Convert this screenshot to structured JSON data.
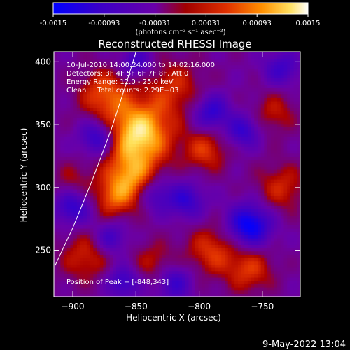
{
  "chart_data": {
    "type": "heatmap",
    "title": "Reconstructed RHESSI Image",
    "xlabel": "Heliocentric X (arcsec)",
    "ylabel": "Heliocentric Y (arcsec)",
    "xlim": [
      -915,
      -720
    ],
    "ylim": [
      213,
      408
    ],
    "x_ticks": [
      -900,
      -850,
      -800,
      -750
    ],
    "y_ticks": [
      250,
      300,
      350,
      400
    ],
    "grid": false,
    "colorbar": {
      "ticks": [
        "-0.0015",
        "-0.00093",
        "-0.00031",
        "0.00031",
        "0.00093",
        "0.0015"
      ],
      "range": [
        -0.0015,
        0.0015
      ],
      "unit_label": "(photons cm⁻² s⁻¹ asec⁻²)",
      "colors": [
        "#0000ff",
        "#3a00c8",
        "#6a00a8",
        "#a00000",
        "#e03000",
        "#ff9000",
        "#ffe060",
        "#ffffff"
      ]
    },
    "annotations": [
      "10-Jul-2010 14:00:24.000 to 14:02:16.000",
      "Detectors: 3F 4F 5F 6F 7F 8F, Att 0",
      "Energy Range: 12.0 - 25.0 keV",
      "Clean     Total counts: 2.29E+03"
    ],
    "peak_label": "Position of Peak = [-848,343]",
    "peak": [
      -848,
      343
    ],
    "limb_curve": [
      [
        -914,
        238
      ],
      [
        -900,
        268
      ],
      [
        -885,
        305
      ],
      [
        -870,
        345
      ],
      [
        -857,
        385
      ],
      [
        -850,
        408
      ]
    ],
    "hotspots": [
      {
        "x": -848,
        "y": 343,
        "sigma": 18,
        "amp": 0.0015
      },
      {
        "x": -855,
        "y": 305,
        "sigma": 15,
        "amp": 0.0011
      },
      {
        "x": -875,
        "y": 375,
        "sigma": 14,
        "amp": 0.0008
      },
      {
        "x": -820,
        "y": 380,
        "sigma": 16,
        "amp": 0.0006
      },
      {
        "x": -795,
        "y": 330,
        "sigma": 12,
        "amp": 0.0007
      },
      {
        "x": -790,
        "y": 250,
        "sigma": 14,
        "amp": 0.0007
      },
      {
        "x": -735,
        "y": 300,
        "sigma": 14,
        "amp": 0.0006
      },
      {
        "x": -760,
        "y": 235,
        "sigma": 13,
        "amp": 0.0007
      },
      {
        "x": -890,
        "y": 245,
        "sigma": 14,
        "amp": 0.0006
      },
      {
        "x": -835,
        "y": 240,
        "sigma": 12,
        "amp": 0.0005
      },
      {
        "x": -740,
        "y": 360,
        "sigma": 12,
        "amp": 0.0005
      },
      {
        "x": -900,
        "y": 305,
        "sigma": 11,
        "amp": 0.0004
      },
      {
        "x": -870,
        "y": 290,
        "sigma": 10,
        "amp": 0.0005
      }
    ],
    "coldspots": [
      {
        "x": -880,
        "y": 340,
        "sigma": 10,
        "amp": -0.001
      },
      {
        "x": -790,
        "y": 360,
        "sigma": 10,
        "amp": -0.0009
      },
      {
        "x": -760,
        "y": 270,
        "sigma": 12,
        "amp": -0.0013
      },
      {
        "x": -835,
        "y": 295,
        "sigma": 10,
        "amp": -0.0008
      },
      {
        "x": -810,
        "y": 290,
        "sigma": 10,
        "amp": -0.0008
      },
      {
        "x": -765,
        "y": 345,
        "sigma": 9,
        "amp": -0.0008
      },
      {
        "x": -850,
        "y": 400,
        "sigma": 9,
        "amp": -0.0007
      },
      {
        "x": -900,
        "y": 285,
        "sigma": 10,
        "amp": -0.0009
      },
      {
        "x": -820,
        "y": 225,
        "sigma": 10,
        "amp": -0.0008
      },
      {
        "x": -735,
        "y": 395,
        "sigma": 10,
        "amp": -0.0007
      },
      {
        "x": -870,
        "y": 260,
        "sigma": 9,
        "amp": -0.0007
      },
      {
        "x": -860,
        "y": 225,
        "sigma": 9,
        "amp": -0.0008
      }
    ]
  },
  "footer": {
    "timestamp": "9-May-2022 13:04"
  }
}
